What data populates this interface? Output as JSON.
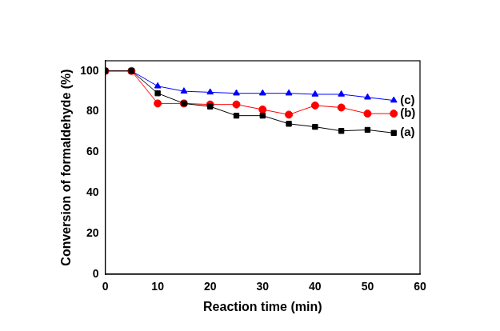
{
  "chart_data": {
    "type": "line",
    "x_label": "Reaction time (min)",
    "y_label": "Conversion of formaldehyde (%)",
    "x": [
      0,
      5,
      10,
      15,
      20,
      25,
      30,
      35,
      40,
      45,
      50,
      55
    ],
    "series": [
      {
        "name": "(a)",
        "color": "#000000",
        "marker": "square",
        "line_style": "solid",
        "values": [
          100,
          100,
          89,
          84,
          82.5,
          78,
          78,
          74,
          72.5,
          70.5,
          71,
          69.5
        ]
      },
      {
        "name": "(b)",
        "color": "#ff0000",
        "marker": "circle",
        "line_style": "solid",
        "values": [
          100,
          100,
          84,
          84,
          83.5,
          83.5,
          81,
          78.5,
          83,
          82,
          79,
          79
        ]
      },
      {
        "name": "(c)",
        "color": "#0000ff",
        "marker": "triangle",
        "line_style": "solid",
        "values": [
          100,
          100,
          92.5,
          90,
          89.5,
          89,
          89,
          89,
          88.5,
          88.5,
          87,
          85.5
        ]
      }
    ],
    "xlim": [
      0,
      60
    ],
    "xticks": [
      0,
      10,
      20,
      30,
      40,
      50,
      60
    ],
    "ylim": [
      0,
      105
    ],
    "yticks": [
      0,
      20,
      40,
      60,
      80,
      100
    ],
    "grid": false
  }
}
